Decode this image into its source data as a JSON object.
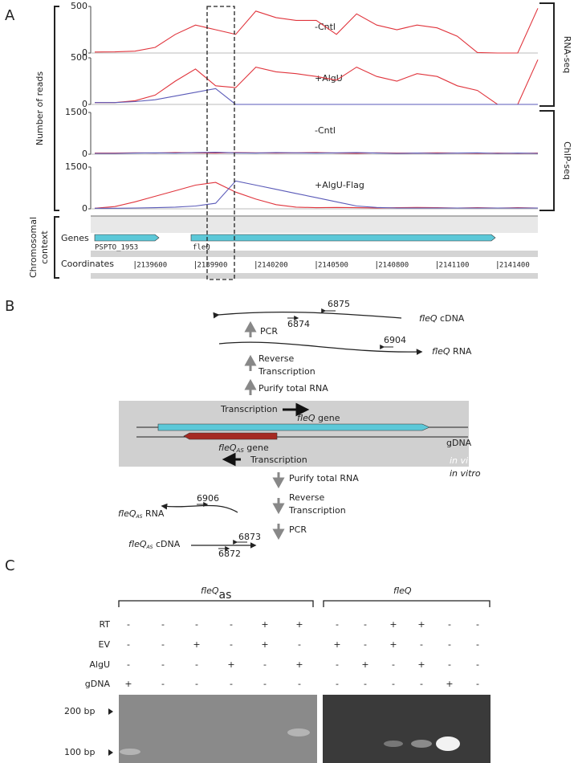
{
  "panel_labels": [
    "A",
    "B",
    "C"
  ],
  "panel_a": {
    "y_axis_label": "Number of reads",
    "rna_label": "RNA-seq",
    "chip_label": "ChIP-seq",
    "context_label": [
      "Chromosomal",
      "context"
    ],
    "genes_label": "Genes",
    "genes": [
      "PSPTO_1953",
      "fleQ"
    ],
    "coordinates_label": "Coordinates",
    "coordinates": [
      2139600,
      2139900,
      2140200,
      2140500,
      2140800,
      2141100,
      2141400
    ]
  },
  "chart_data": [
    {
      "type": "line",
      "annotation": "-Cntl",
      "x": [
        2139400,
        2139500,
        2139600,
        2139700,
        2139800,
        2139900,
        2140000,
        2140100,
        2140200,
        2140300,
        2140400,
        2140500,
        2140600,
        2140700,
        2140800,
        2140900,
        2141000,
        2141100,
        2141200,
        2141300,
        2141400,
        2141500,
        2141600
      ],
      "xlim": [
        2139380,
        2141600
      ],
      "ylim": [
        0,
        500
      ],
      "yticks": [
        0,
        500
      ],
      "series": [
        {
          "color": "#e0343c",
          "values": [
            10,
            12,
            20,
            60,
            200,
            300,
            250,
            200,
            450,
            380,
            350,
            350,
            200,
            420,
            300,
            250,
            300,
            270,
            180,
            5,
            0,
            0,
            480
          ]
        }
      ]
    },
    {
      "type": "line",
      "annotation": "+AlgU",
      "x": [
        2139400,
        2139500,
        2139600,
        2139700,
        2139800,
        2139900,
        2140000,
        2140100,
        2140200,
        2140300,
        2140400,
        2140500,
        2140600,
        2140700,
        2140800,
        2140900,
        2141000,
        2141100,
        2141200,
        2141300,
        2141400,
        2141500,
        2141600
      ],
      "xlim": [
        2139380,
        2141600
      ],
      "ylim": [
        0,
        500
      ],
      "yticks": [
        0,
        500
      ],
      "series": [
        {
          "color": "#e0343c",
          "values": [
            20,
            20,
            40,
            100,
            250,
            380,
            200,
            180,
            400,
            350,
            330,
            300,
            260,
            400,
            300,
            250,
            330,
            300,
            200,
            150,
            0,
            0,
            480
          ]
        },
        {
          "color": "#5a5ab8",
          "values": [
            20,
            20,
            30,
            50,
            90,
            130,
            170,
            0,
            0,
            0,
            0,
            0,
            0,
            0,
            0,
            0,
            0,
            0,
            0,
            0,
            0,
            0,
            0
          ]
        }
      ]
    },
    {
      "type": "line",
      "annotation": "-Cntl",
      "x": [
        2139400,
        2139500,
        2139600,
        2139700,
        2139800,
        2139900,
        2140000,
        2140100,
        2140200,
        2140300,
        2140400,
        2140500,
        2140600,
        2140700,
        2140800,
        2140900,
        2141000,
        2141100,
        2141200,
        2141300,
        2141400,
        2141500,
        2141600
      ],
      "xlim": [
        2139380,
        2141600
      ],
      "ylim": [
        0,
        1500
      ],
      "yticks": [
        0,
        1500
      ],
      "series": [
        {
          "color": "#e0343c",
          "values": [
            40,
            40,
            50,
            40,
            60,
            50,
            40,
            60,
            50,
            40,
            50,
            60,
            40,
            30,
            50,
            40,
            40,
            50,
            40,
            30,
            40,
            30,
            40
          ]
        },
        {
          "color": "#5a5ab8",
          "values": [
            30,
            30,
            40,
            50,
            40,
            60,
            70,
            50,
            40,
            60,
            50,
            40,
            50,
            60,
            40,
            30,
            40,
            30,
            40,
            50,
            30,
            40,
            30
          ]
        }
      ]
    },
    {
      "type": "line",
      "annotation": "+AlgU-Flag",
      "x": [
        2139400,
        2139500,
        2139600,
        2139700,
        2139800,
        2139900,
        2140000,
        2140100,
        2140200,
        2140300,
        2140400,
        2140500,
        2140600,
        2140700,
        2140800,
        2140900,
        2141000,
        2141100,
        2141200,
        2141300,
        2141400,
        2141500,
        2141600
      ],
      "xlim": [
        2139380,
        2141600
      ],
      "ylim": [
        0,
        1500
      ],
      "yticks": [
        0,
        1500
      ],
      "series": [
        {
          "color": "#e0343c",
          "values": [
            20,
            80,
            250,
            450,
            650,
            850,
            950,
            600,
            350,
            150,
            60,
            40,
            50,
            40,
            30,
            40,
            50,
            40,
            30,
            40,
            30,
            40,
            30
          ]
        },
        {
          "color": "#5a5ab8",
          "values": [
            20,
            20,
            30,
            40,
            60,
            100,
            200,
            1000,
            850,
            700,
            550,
            400,
            250,
            100,
            50,
            30,
            30,
            30,
            30,
            30,
            30,
            30,
            30
          ]
        }
      ]
    }
  ],
  "panel_b": {
    "cdna_label": {
      "base": "fleQ",
      "rest": "cDNA"
    },
    "primer_6875": "6875",
    "primer_6874": "6874",
    "pcr_top": "PCR",
    "rna_label": {
      "base": "fleQ",
      "rest": "RNA"
    },
    "primer_6904": "6904",
    "rt_top": [
      "Reverse",
      "Transcription"
    ],
    "purify_top": "Purify total RNA",
    "transcription_top": "Transcription",
    "gene_label": {
      "base": "fleQ",
      "rest": "gene"
    },
    "as_gene_label": {
      "base": "fleQ",
      "sub": "AS",
      "rest": "gene"
    },
    "gdna": "gDNA",
    "transcription_bottom": "Transcription",
    "in_vivo": "in vivo",
    "in_vitro": "in vitro",
    "purify_bottom": "Purify total RNA",
    "rt_bottom": [
      "Reverse",
      "Transcription"
    ],
    "pcr_bottom": "PCR",
    "primer_6906": "6906",
    "as_rna_label": {
      "base": "fleQ",
      "sub": "AS",
      "rest": "RNA"
    },
    "as_cdna_label": {
      "base": "fleQ",
      "sub": "AS",
      "rest": "cDNA"
    },
    "primer_6873": "6873",
    "primer_6872": "6872"
  },
  "panel_c": {
    "group_left": {
      "base": "fleQ",
      "sub": "as"
    },
    "group_right": "fleQ",
    "rows": [
      {
        "label": "RT",
        "cells": [
          "-",
          "-",
          "-",
          "-",
          "+",
          "+",
          "-",
          "-",
          "+",
          "+",
          "-",
          "-"
        ]
      },
      {
        "label": "EV",
        "cells": [
          "-",
          "-",
          "+",
          "-",
          "+",
          "-",
          "+",
          "-",
          "+",
          "-",
          "-",
          "-"
        ]
      },
      {
        "label": "AlgU",
        "cells": [
          "-",
          "-",
          "-",
          "+",
          "-",
          "+",
          "-",
          "+",
          "-",
          "+",
          "-",
          "-"
        ]
      },
      {
        "label": "gDNA",
        "cells": [
          "+",
          "-",
          "-",
          "-",
          "-",
          "-",
          "-",
          "-",
          "-",
          "-",
          "+",
          "-"
        ]
      }
    ],
    "markers": [
      "200 bp",
      "100 bp"
    ]
  }
}
